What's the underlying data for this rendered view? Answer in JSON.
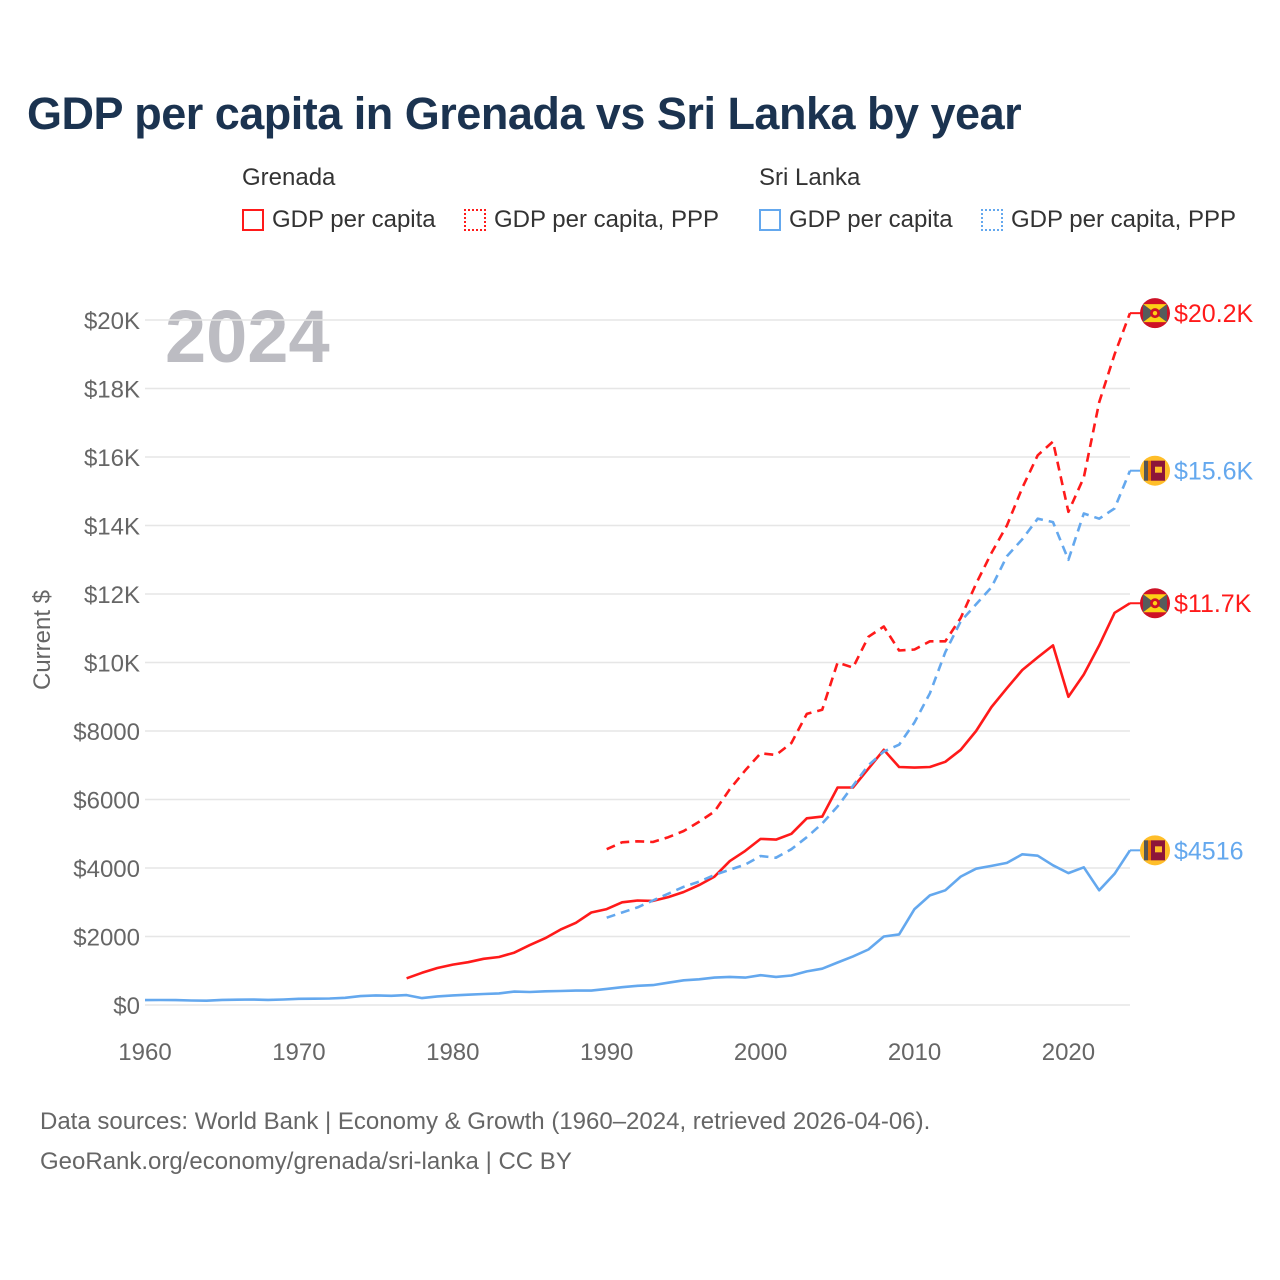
{
  "title": "GDP per capita in Grenada vs Sri Lanka by year",
  "legend": {
    "groups": [
      {
        "name": "Grenada",
        "items": [
          "GDP per capita",
          "GDP per capita, PPP"
        ],
        "color": "#ff1a1a"
      },
      {
        "name": "Sri Lanka",
        "items": [
          "GDP per capita",
          "GDP per capita, PPP"
        ],
        "color": "#64a8ee"
      }
    ]
  },
  "year_watermark": "2024",
  "footer": {
    "line1": "Data sources: World Bank | Economy & Growth (1960–2024, retrieved 2026-04-06).",
    "line2": "GeoRank.org/economy/grenada/sri-lanka | CC BY"
  },
  "chart_data": {
    "type": "line",
    "title": "GDP per capita in Grenada vs Sri Lanka by year",
    "xlabel": "",
    "ylabel": "Current $",
    "xlim": [
      1960,
      2024
    ],
    "ylim": [
      0,
      20000
    ],
    "grid": true,
    "x_ticks": [
      1960,
      1970,
      1980,
      1990,
      2000,
      2010,
      2020
    ],
    "x_tick_labels": [
      "1960",
      "1970",
      "1980",
      "1990",
      "2000",
      "2010",
      "2020"
    ],
    "y_ticks": [
      0,
      2000,
      4000,
      6000,
      8000,
      10000,
      12000,
      14000,
      16000,
      18000,
      20000
    ],
    "y_tick_labels": [
      "$0",
      "$2000",
      "$4000",
      "$6000",
      "$8000",
      "$10K",
      "$12K",
      "$14K",
      "$16K",
      "$18K",
      "$20K"
    ],
    "series": [
      {
        "name": "Grenada GDP per capita",
        "color": "#ff1a1a",
        "dash": false,
        "end_label": "$11.7K",
        "flag": "grenada",
        "start": 1977,
        "values": [
          780,
          940,
          1080,
          1180,
          1250,
          1350,
          1400,
          1530,
          1750,
          1950,
          2200,
          2400,
          2700,
          2800,
          3000,
          3050,
          3040,
          3150,
          3300,
          3500,
          3750,
          4200,
          4500,
          4850,
          4830,
          5000,
          5450,
          5500,
          6350,
          6350,
          6900,
          7450,
          6950,
          6930,
          6950,
          7100,
          7450,
          8000,
          8700,
          9250,
          9780,
          10150,
          10500,
          9000,
          9650,
          10500,
          11450,
          11730
        ]
      },
      {
        "name": "Grenada GDP per capita, PPP",
        "color": "#ff1a1a",
        "dash": true,
        "end_label": "$20.2K",
        "flag": "grenada",
        "start": 1990,
        "values": [
          4550,
          4750,
          4780,
          4760,
          4900,
          5080,
          5350,
          5650,
          6300,
          6850,
          7350,
          7300,
          7650,
          8500,
          8620,
          10000,
          9850,
          10750,
          11050,
          10350,
          10380,
          10620,
          10620,
          11300,
          12300,
          13200,
          14000,
          15100,
          16050,
          16450,
          14400,
          15400,
          17600,
          19000,
          20200
        ]
      },
      {
        "name": "Sri Lanka GDP per capita",
        "color": "#64a8ee",
        "dash": false,
        "end_label": "$4516",
        "flag": "srilanka",
        "start": 1960,
        "values": [
          143,
          145,
          142,
          130,
          125,
          150,
          155,
          160,
          150,
          160,
          180,
          185,
          190,
          210,
          260,
          280,
          270,
          290,
          200,
          250,
          280,
          300,
          320,
          340,
          390,
          380,
          400,
          410,
          420,
          420,
          470,
          520,
          560,
          580,
          650,
          720,
          750,
          800,
          820,
          800,
          870,
          820,
          860,
          980,
          1060,
          1240,
          1420,
          1620,
          2000,
          2060,
          2800,
          3200,
          3350,
          3750,
          3980,
          4060,
          4150,
          4400,
          4360,
          4080,
          3850,
          4020,
          3350,
          3830,
          4516
        ]
      },
      {
        "name": "Sri Lanka GDP per capita, PPP",
        "color": "#64a8ee",
        "dash": true,
        "end_label": "$15.6K",
        "flag": "srilanka",
        "start": 1990,
        "values": [
          2550,
          2700,
          2850,
          3050,
          3250,
          3450,
          3600,
          3800,
          3950,
          4100,
          4350,
          4300,
          4550,
          4900,
          5300,
          5800,
          6400,
          7000,
          7400,
          7600,
          8250,
          9100,
          10300,
          11200,
          11700,
          12200,
          13100,
          13600,
          14200,
          14100,
          13000,
          14350,
          14200,
          14500,
          15600
        ]
      }
    ]
  }
}
